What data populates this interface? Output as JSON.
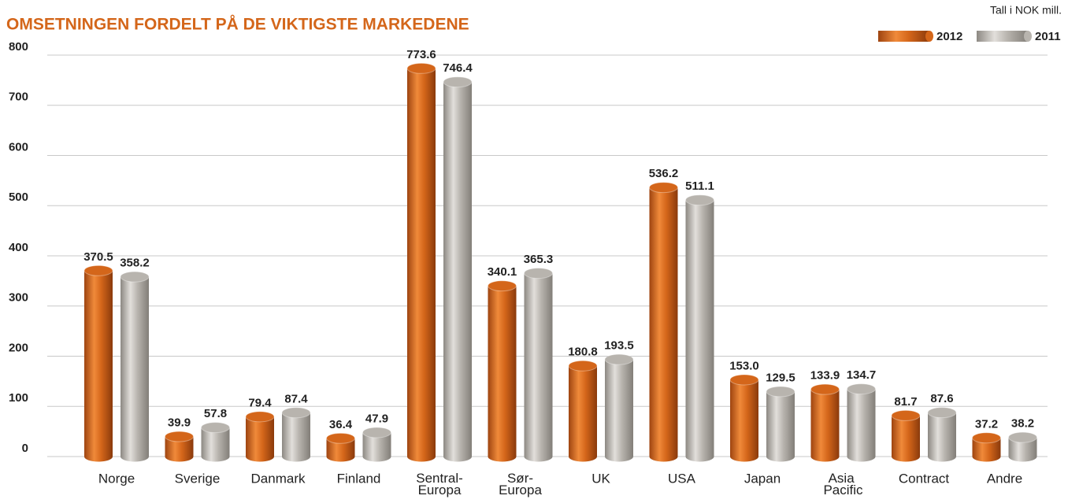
{
  "chart_data": {
    "type": "bar",
    "title": "OMSETNINGEN FORDELT PÅ DE VIKTIGSTE MARKEDENE",
    "subtitle": "Tall i NOK mill.",
    "categories": [
      "Norge",
      "Sverige",
      "Danmark",
      "Finland",
      "Sentral-Europa",
      "Sør-Europa",
      "UK",
      "USA",
      "Japan",
      "Asia Pacific",
      "Contract",
      "Andre"
    ],
    "series": [
      {
        "name": "2012",
        "color": "#d4661a",
        "values": [
          370.5,
          39.9,
          79.4,
          36.4,
          773.6,
          340.1,
          180.8,
          536.2,
          153.0,
          133.9,
          81.7,
          37.2
        ],
        "value_labels": [
          "370.5",
          "39.9",
          "79.4",
          "36.4",
          "773.6",
          "340.1",
          "180.8",
          "536.2",
          "153.0",
          "133.9",
          "81.7",
          "37.2"
        ]
      },
      {
        "name": "2011",
        "color": "#b8b4ae",
        "values": [
          358.2,
          57.8,
          87.4,
          47.9,
          746.4,
          365.3,
          193.5,
          511.1,
          129.5,
          134.7,
          87.6,
          38.2
        ],
        "value_labels": [
          "358.2",
          "57.8",
          "87.4",
          "47.9",
          "746.4",
          "365.3",
          "193.5",
          "511.1",
          "129.5",
          "134.7",
          "87.6",
          "38.2"
        ]
      }
    ],
    "ylim": [
      0,
      800
    ],
    "yticks": [
      0,
      100,
      200,
      300,
      400,
      500,
      600,
      700,
      800
    ],
    "grid": true
  }
}
